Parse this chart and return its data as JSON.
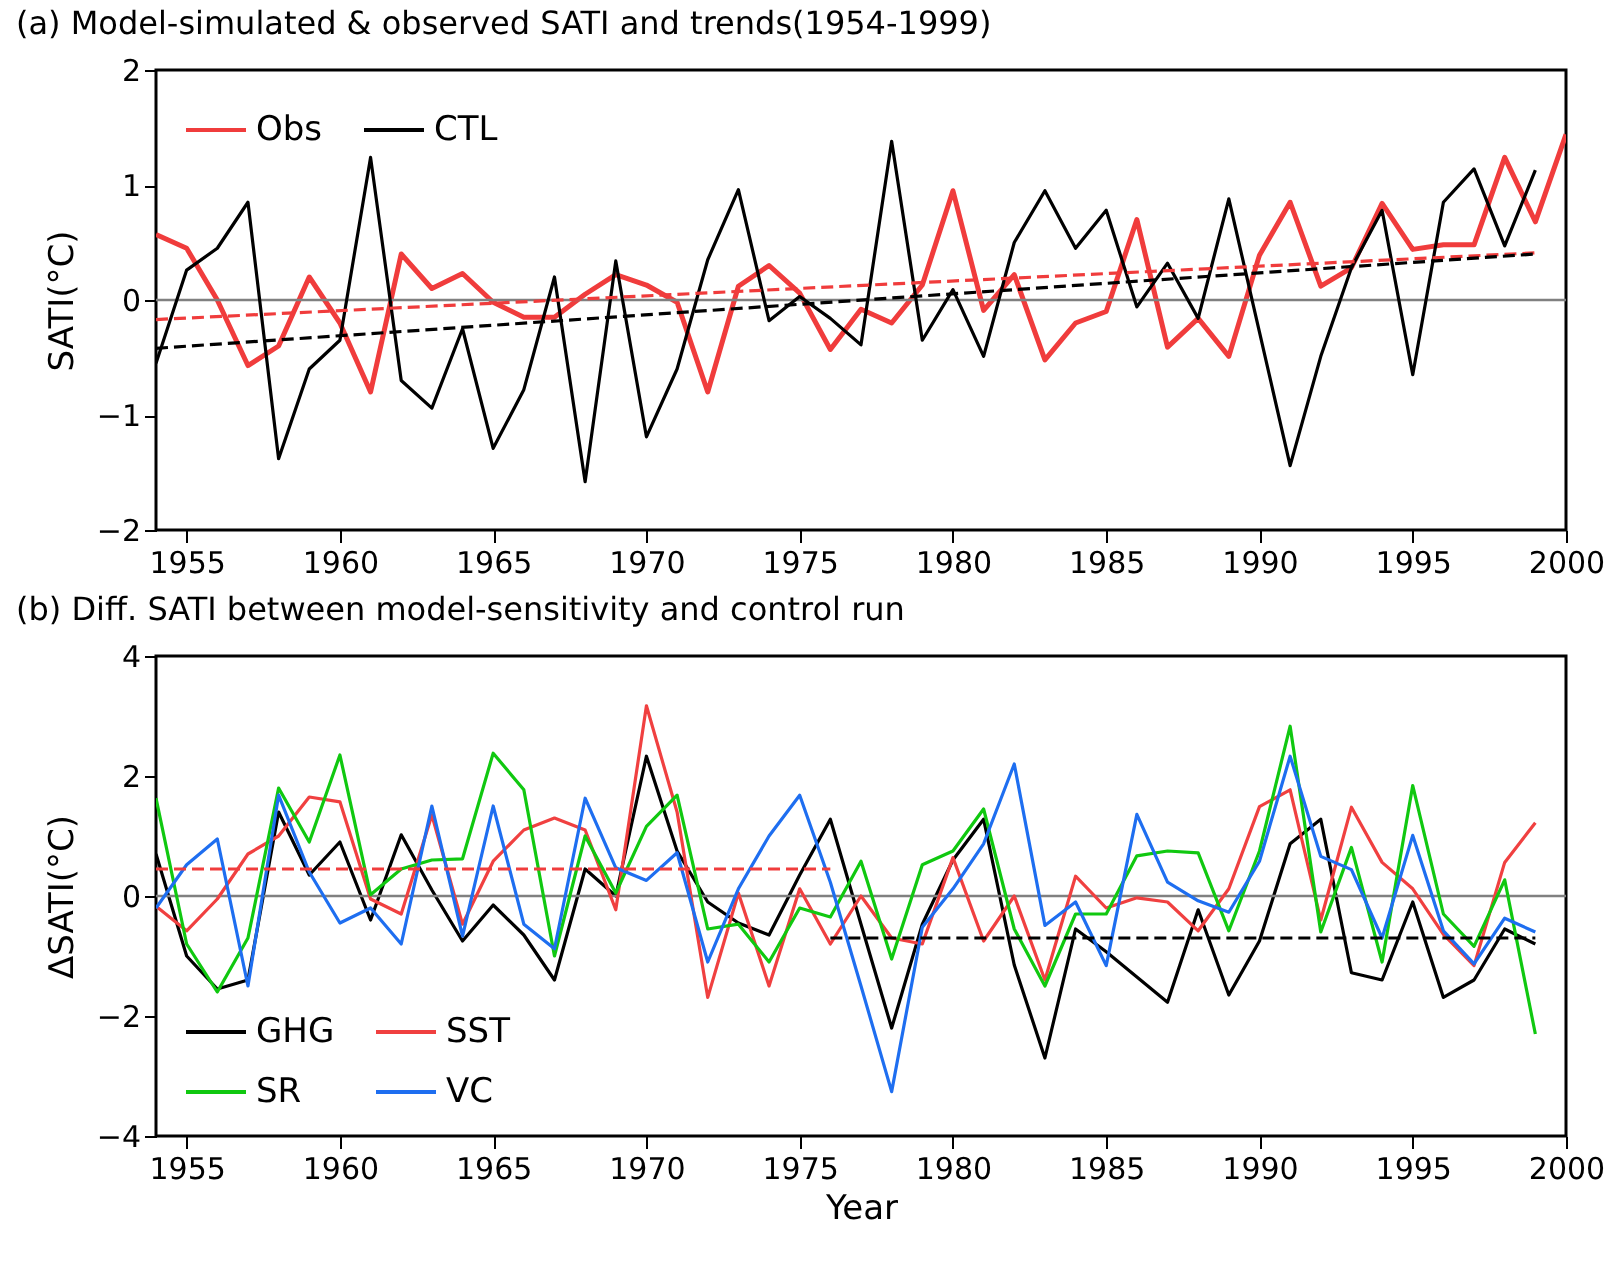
{
  "chart_data": [
    {
      "type": "line",
      "title": "(a) Model-simulated & observed SATI and trends(1954-1999)",
      "ylabel": "SATI(°C)",
      "x": [
        1954,
        1955,
        1956,
        1957,
        1958,
        1959,
        1960,
        1961,
        1962,
        1963,
        1964,
        1965,
        1966,
        1967,
        1968,
        1969,
        1970,
        1971,
        1972,
        1973,
        1974,
        1975,
        1976,
        1977,
        1978,
        1979,
        1980,
        1981,
        1982,
        1983,
        1984,
        1985,
        1986,
        1987,
        1988,
        1989,
        1990,
        1991,
        1992,
        1993,
        1994,
        1995,
        1996,
        1997,
        1998,
        1999
      ],
      "xlim": [
        1954,
        2000
      ],
      "xticks": [
        1955,
        1960,
        1965,
        1970,
        1975,
        1980,
        1985,
        1990,
        1995,
        2000
      ],
      "ylim": [
        -2,
        2
      ],
      "yticks": [
        -2,
        -1,
        0,
        1,
        2
      ],
      "legend": "top left",
      "ref_lines": [
        {
          "axis": "y",
          "value": 0,
          "color": "#808080"
        }
      ],
      "series": [
        {
          "name": "Obs",
          "color": "#f03c3c",
          "x": [
            1954,
            1955,
            1956,
            1957,
            1958,
            1959,
            1960,
            1961,
            1962,
            1963,
            1964,
            1965,
            1966,
            1967,
            1968,
            1969,
            1970,
            1971,
            1972,
            1973,
            1974,
            1975,
            1976,
            1977,
            1978,
            1979,
            1980,
            1981,
            1982,
            1983,
            1984,
            1985,
            1986,
            1987,
            1988,
            1989,
            1990,
            1991,
            1992,
            1993,
            1994,
            1995,
            1996,
            1997,
            1998,
            1999,
            2000
          ],
          "values": [
            0.57,
            0.45,
            0.0,
            -0.57,
            -0.4,
            0.2,
            -0.2,
            -0.8,
            0.4,
            0.1,
            0.23,
            -0.02,
            -0.15,
            -0.15,
            0.05,
            0.22,
            0.13,
            -0.02,
            -0.8,
            0.12,
            0.3,
            0.06,
            -0.43,
            -0.08,
            -0.2,
            0.13,
            0.95,
            -0.09,
            0.22,
            -0.52,
            -0.2,
            -0.1,
            0.7,
            -0.41,
            -0.16,
            -0.49,
            0.39,
            0.85,
            0.12,
            0.28,
            0.84,
            0.44,
            0.48,
            0.48,
            1.24,
            0.68,
            1.44
          ]
        },
        {
          "name": "CTL",
          "color": "#000000",
          "values": [
            -0.55,
            0.26,
            0.45,
            0.85,
            -1.38,
            -0.6,
            -0.35,
            1.24,
            -0.7,
            -0.94,
            -0.25,
            -1.29,
            -0.78,
            0.2,
            -1.58,
            0.34,
            -1.19,
            -0.6,
            0.35,
            0.96,
            -0.18,
            0.03,
            -0.16,
            -0.39,
            1.38,
            -0.35,
            0.09,
            -0.49,
            0.5,
            0.95,
            0.45,
            0.78,
            -0.06,
            0.32,
            -0.16,
            0.88,
            -0.28,
            -1.44,
            -0.49,
            0.28,
            0.78,
            -0.65,
            0.85,
            1.14,
            0.47,
            1.13
          ]
        },
        {
          "color": "#f03c3c",
          "line_style": "dashed",
          "x": [
            1954,
            1999
          ],
          "values": [
            -0.17,
            0.41
          ]
        },
        {
          "color": "#000000",
          "line_style": "dashed",
          "x": [
            1954,
            1999
          ],
          "values": [
            -0.42,
            0.4
          ]
        }
      ]
    },
    {
      "type": "line",
      "title": "(b) Diff. SATI between model-sensitivity and control run",
      "xlabel": "Year",
      "ylabel": "ΔSATI(°C)",
      "x": [
        1954,
        1955,
        1956,
        1957,
        1958,
        1959,
        1960,
        1961,
        1962,
        1963,
        1964,
        1965,
        1966,
        1967,
        1968,
        1969,
        1970,
        1971,
        1972,
        1973,
        1974,
        1975,
        1976,
        1977,
        1978,
        1979,
        1980,
        1981,
        1982,
        1983,
        1984,
        1985,
        1986,
        1987,
        1988,
        1989,
        1990,
        1991,
        1992,
        1993,
        1994,
        1995,
        1996,
        1997,
        1998,
        1999
      ],
      "xlim": [
        1954,
        2000
      ],
      "xticks": [
        1955,
        1960,
        1965,
        1970,
        1975,
        1980,
        1985,
        1990,
        1995,
        2000
      ],
      "ylim": [
        -4,
        4
      ],
      "yticks": [
        -4,
        -2,
        0,
        2,
        4
      ],
      "legend": "bottom left",
      "ref_lines": [
        {
          "axis": "y",
          "value": 0,
          "color": "#808080"
        }
      ],
      "series": [
        {
          "name": "GHG",
          "color": "#000000",
          "values": [
            0.7,
            -1.0,
            -1.55,
            -1.4,
            1.4,
            0.35,
            0.9,
            -0.4,
            1.02,
            0.1,
            -0.75,
            -0.15,
            -0.65,
            -1.4,
            0.45,
            0.0,
            2.33,
            0.75,
            -0.1,
            -0.45,
            -0.65,
            0.35,
            1.28,
            -0.47,
            -2.2,
            -0.47,
            0.6,
            1.28,
            -1.15,
            -2.7,
            -0.55,
            -0.93,
            -1.35,
            -1.77,
            -0.23,
            -1.65,
            -0.75,
            0.87,
            1.28,
            -1.28,
            -1.4,
            -0.1,
            -1.69,
            -1.4,
            -0.55,
            -0.8
          ]
        },
        {
          "name": "SST",
          "color": "#f04040",
          "values": [
            -0.17,
            -0.58,
            -0.05,
            0.7,
            1.0,
            1.65,
            1.57,
            -0.05,
            -0.3,
            1.35,
            -0.47,
            0.58,
            1.1,
            1.3,
            1.1,
            -0.23,
            3.17,
            1.4,
            -1.69,
            0.05,
            -1.5,
            0.12,
            -0.8,
            0.0,
            -0.7,
            -0.8,
            0.64,
            -0.75,
            0.0,
            -1.4,
            0.33,
            -0.2,
            -0.03,
            -0.1,
            -0.58,
            0.12,
            1.49,
            1.77,
            -0.4,
            1.48,
            0.56,
            0.12,
            -0.64,
            -1.16,
            0.56,
            1.22
          ]
        },
        {
          "name": "SR",
          "color": "#10c810",
          "values": [
            1.63,
            -0.8,
            -1.6,
            -0.7,
            1.8,
            0.9,
            2.35,
            0.02,
            0.45,
            0.6,
            0.62,
            2.38,
            1.77,
            -1.0,
            1.0,
            0.05,
            1.16,
            1.68,
            -0.55,
            -0.47,
            -1.1,
            -0.2,
            -0.35,
            0.58,
            -1.05,
            0.52,
            0.75,
            1.45,
            -0.55,
            -1.5,
            -0.3,
            -0.3,
            0.67,
            0.75,
            0.72,
            -0.58,
            0.75,
            2.83,
            -0.6,
            0.81,
            -1.1,
            1.84,
            -0.3,
            -0.84,
            0.27,
            -2.3
          ]
        },
        {
          "name": "VC",
          "color": "#1e6ef0",
          "values": [
            -0.2,
            0.52,
            0.95,
            -1.5,
            1.68,
            0.4,
            -0.45,
            -0.2,
            -0.8,
            1.5,
            -0.67,
            1.5,
            -0.47,
            -0.88,
            1.63,
            0.47,
            0.26,
            0.72,
            -1.1,
            0.12,
            1.0,
            1.68,
            0.23,
            -1.5,
            -3.26,
            -0.52,
            0.12,
            0.87,
            2.2,
            -0.49,
            -0.1,
            -1.16,
            1.36,
            0.23,
            -0.08,
            -0.27,
            0.58,
            2.33,
            0.66,
            0.44,
            -0.7,
            1.01,
            -0.58,
            -1.13,
            -0.37,
            -0.6
          ]
        },
        {
          "color": "#f03c3c",
          "line_style": "dashed",
          "x": [
            1954,
            1976
          ],
          "values": [
            0.45,
            0.45
          ]
        },
        {
          "color": "#000000",
          "line_style": "dashed",
          "x": [
            1976,
            1999
          ],
          "values": [
            -0.7,
            -0.7
          ]
        }
      ]
    }
  ]
}
